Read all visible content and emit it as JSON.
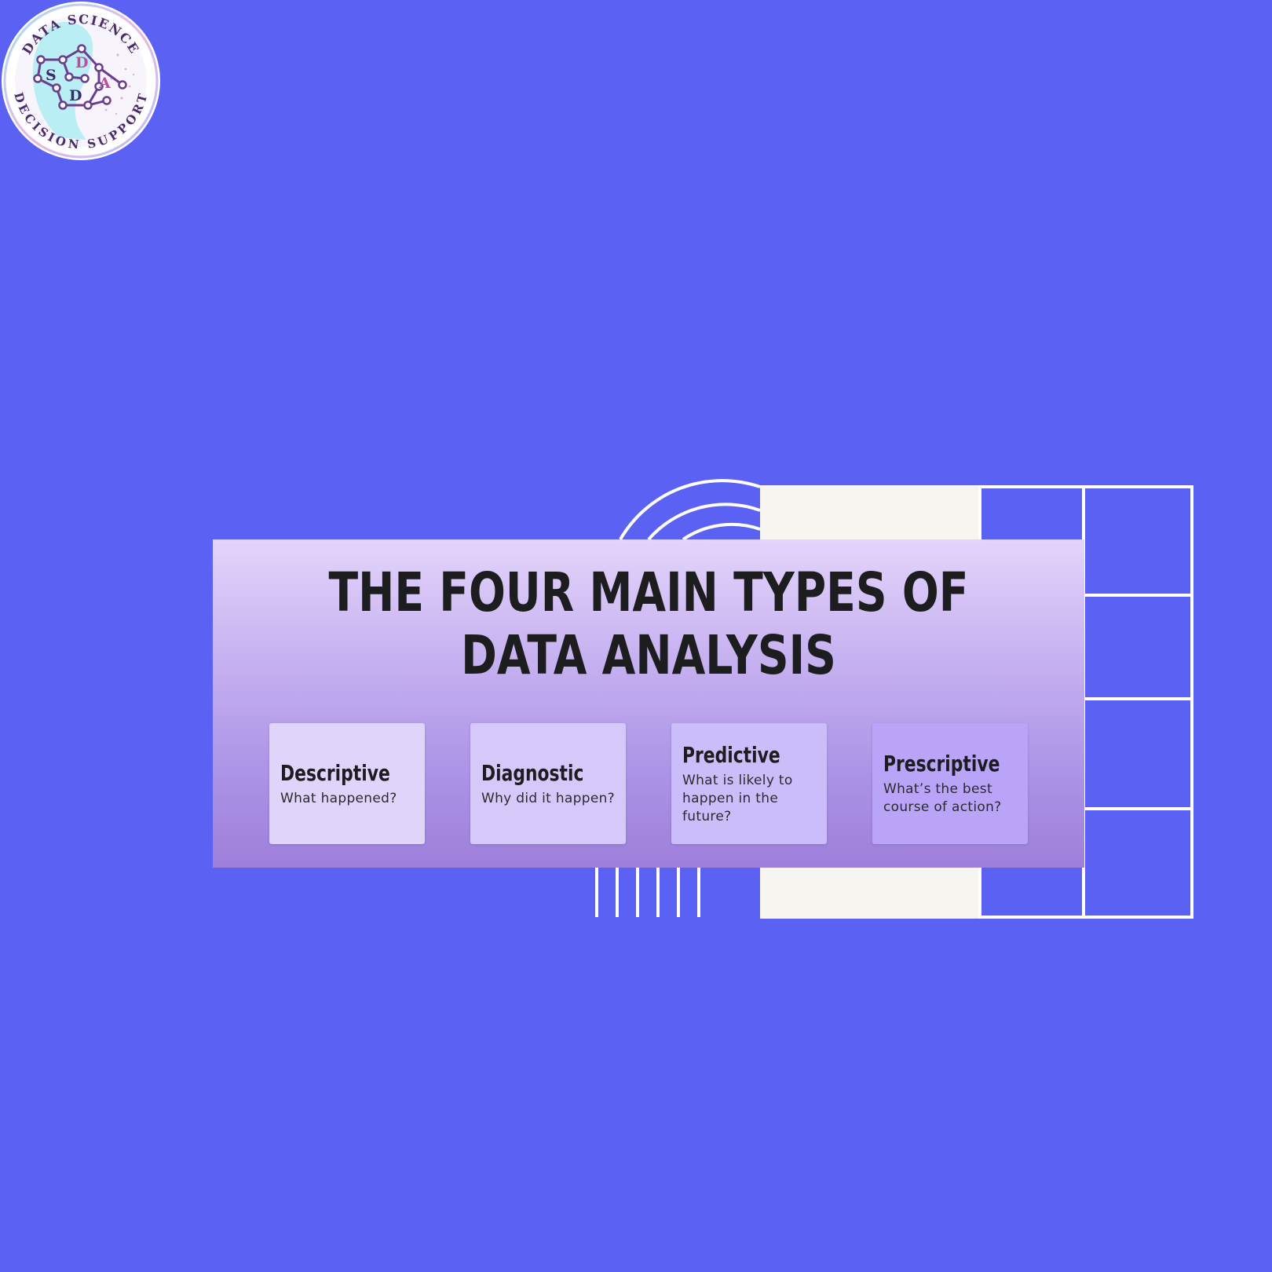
{
  "logo": {
    "top_text": "DATA SCIENCE",
    "bottom_text": "DECISION SUPPORT",
    "letters": [
      "S",
      "D",
      "A",
      "D"
    ]
  },
  "diagram": {
    "title_line1": "THE FOUR MAIN TYPES OF",
    "title_line2": "DATA ANALYSIS",
    "types": [
      {
        "name": "Descriptive",
        "question": "What happened?"
      },
      {
        "name": "Diagnostic",
        "question": "Why did it happen?"
      },
      {
        "name": "Predictive",
        "question": "What is likely to happen in the future?"
      },
      {
        "name": "Prescriptive",
        "question": "What’s the best course of action?"
      }
    ]
  },
  "colors": {
    "background": "#5b61f3",
    "panel_top": "#e3d4fb",
    "panel_bottom": "#9e7fda",
    "title_text": "#1d1d1f",
    "decor_white": "#ffffff",
    "decor_cream": "#f7f5f0"
  }
}
